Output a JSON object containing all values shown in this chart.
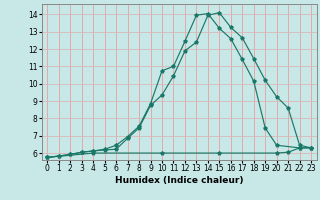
{
  "xlabel": "Humidex (Indice chaleur)",
  "bg_color": "#c8e8e8",
  "grid_color_h": "#d8b8b8",
  "grid_color_v": "#e8a0a0",
  "line_color": "#1a7868",
  "xlim": [
    -0.5,
    23.5
  ],
  "ylim": [
    5.6,
    14.6
  ],
  "xticks": [
    0,
    1,
    2,
    3,
    4,
    5,
    6,
    7,
    8,
    9,
    10,
    11,
    12,
    13,
    14,
    15,
    16,
    17,
    18,
    19,
    20,
    21,
    22,
    23
  ],
  "yticks": [
    6,
    7,
    8,
    9,
    10,
    11,
    12,
    13,
    14
  ],
  "curve1_x": [
    0,
    1,
    2,
    3,
    4,
    5,
    6,
    7,
    8,
    9,
    10,
    11,
    12,
    13,
    14,
    15,
    16,
    17,
    18,
    19,
    20,
    21,
    22,
    23
  ],
  "curve1_y": [
    5.75,
    5.83,
    5.92,
    6.05,
    6.12,
    6.18,
    6.22,
    6.85,
    7.45,
    8.75,
    9.35,
    10.45,
    11.9,
    12.4,
    13.95,
    14.1,
    13.25,
    12.65,
    11.45,
    10.2,
    9.25,
    8.6,
    6.45,
    6.3
  ],
  "curve2_x": [
    0,
    1,
    2,
    3,
    4,
    5,
    6,
    7,
    8,
    9,
    10,
    11,
    12,
    13,
    14,
    15,
    16,
    17,
    18,
    19,
    20,
    22,
    23
  ],
  "curve2_y": [
    5.75,
    5.83,
    5.92,
    6.05,
    6.12,
    6.22,
    6.45,
    6.95,
    7.55,
    8.85,
    10.75,
    11.0,
    12.45,
    13.95,
    14.05,
    13.2,
    12.6,
    11.4,
    10.15,
    7.45,
    6.45,
    6.3,
    6.3
  ],
  "curve3_x": [
    0,
    4,
    10,
    15,
    20,
    21,
    22,
    23
  ],
  "curve3_y": [
    5.75,
    6.0,
    6.0,
    6.0,
    6.0,
    6.05,
    6.3,
    6.3
  ]
}
